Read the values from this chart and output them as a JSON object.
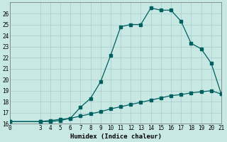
{
  "title": "",
  "xlabel": "Humidex (Indice chaleur)",
  "background_color": "#c8e8e4",
  "line_color": "#006060",
  "grid_color": "#a8cccc",
  "x_line1": [
    0,
    3,
    4,
    5,
    6,
    7,
    8,
    9,
    10,
    11,
    12,
    13,
    14,
    15,
    16,
    17,
    18,
    19,
    20,
    21
  ],
  "y_line1": [
    16.2,
    16.2,
    16.2,
    16.3,
    16.5,
    17.5,
    18.3,
    19.8,
    22.2,
    24.8,
    25.0,
    25.0,
    26.5,
    26.3,
    26.3,
    25.3,
    23.3,
    22.8,
    21.5,
    18.7
  ],
  "x_line2": [
    0,
    3,
    4,
    5,
    6,
    7,
    8,
    9,
    10,
    11,
    12,
    13,
    14,
    15,
    16,
    17,
    18,
    19,
    20,
    21
  ],
  "y_line2": [
    16.2,
    16.2,
    16.3,
    16.4,
    16.5,
    16.7,
    16.9,
    17.1,
    17.35,
    17.55,
    17.75,
    17.95,
    18.15,
    18.35,
    18.55,
    18.65,
    18.8,
    18.9,
    19.0,
    18.7
  ],
  "xlim": [
    0,
    21
  ],
  "ylim": [
    16,
    27
  ],
  "yticks": [
    16,
    17,
    18,
    19,
    20,
    21,
    22,
    23,
    24,
    25,
    26
  ],
  "xticks": [
    0,
    3,
    4,
    5,
    6,
    7,
    8,
    9,
    10,
    11,
    12,
    13,
    14,
    15,
    16,
    17,
    18,
    19,
    20,
    21
  ],
  "ylabel_fontsize": 5.5,
  "xlabel_fontsize": 6.5,
  "tick_fontsize": 5.5,
  "linewidth1": 0.9,
  "linewidth2": 0.9,
  "markersize1": 2.2,
  "markersize2": 2.2
}
